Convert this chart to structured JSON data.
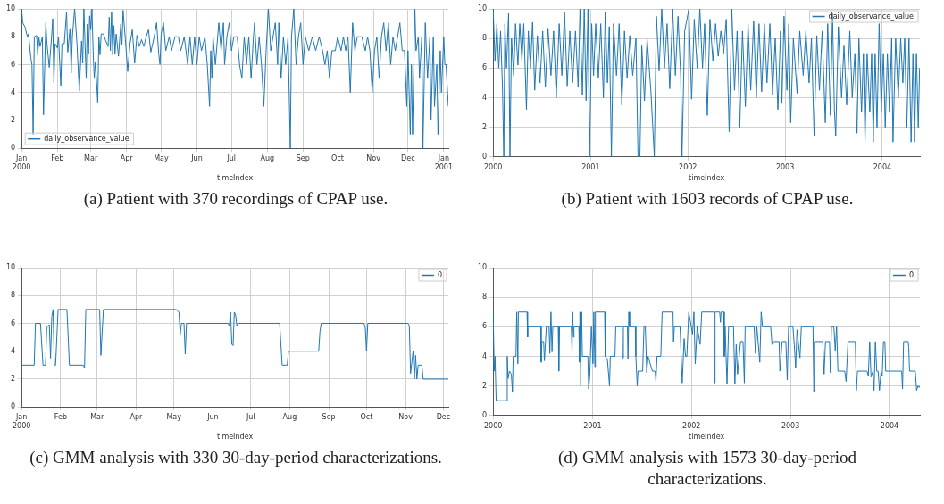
{
  "chart_data": [
    {
      "type": "line",
      "xlabel": "timeIndex",
      "legend": "bottom left",
      "grid": true,
      "annotations": [
        "(a) Patient with 370 recordings of CPAP use."
      ],
      "xlim": [
        "2000-01-01",
        "2001-01-05"
      ],
      "ylim": [
        0,
        10
      ],
      "yticks": [
        0,
        2,
        4,
        6,
        8,
        10
      ],
      "xticks": [
        {
          "value": "2000-01-01",
          "label": "Jan\n2000"
        },
        {
          "value": "2000-02-01",
          "label": "Feb"
        },
        {
          "value": "2000-03-01",
          "label": "Mar"
        },
        {
          "value": "2000-04-01",
          "label": "Apr"
        },
        {
          "value": "2000-05-01",
          "label": "May"
        },
        {
          "value": "2000-06-01",
          "label": "Jun"
        },
        {
          "value": "2000-07-01",
          "label": "Jul"
        },
        {
          "value": "2000-08-01",
          "label": "Aug"
        },
        {
          "value": "2000-09-01",
          "label": "Sep"
        },
        {
          "value": "2000-10-01",
          "label": "Oct"
        },
        {
          "value": "2000-11-01",
          "label": "Nov"
        },
        {
          "value": "2000-12-01",
          "label": "Dec"
        },
        {
          "value": "2001-01-01",
          "label": "Jan\n2001"
        }
      ],
      "series": [
        {
          "name": "daily_observance_value",
          "color": "#1f77b4",
          "x": [
            "2000-01-01",
            "2000-01-02",
            "2000-01-04",
            "2000-01-06",
            "2000-01-07",
            "2000-01-09",
            "2000-01-10",
            "2000-01-11",
            "2000-01-12",
            "2000-01-14",
            "2000-01-15",
            "2000-01-16",
            "2000-01-17",
            "2000-01-19",
            "2000-01-20",
            "2000-01-22",
            "2000-01-23",
            "2000-01-25",
            "2000-01-27",
            "2000-01-28",
            "2000-01-29",
            "2000-01-30",
            "2000-02-01",
            "2000-02-02",
            "2000-02-04",
            "2000-02-05",
            "2000-02-07",
            "2000-02-09",
            "2000-02-10",
            "2000-02-12",
            "2000-02-13",
            "2000-02-14",
            "2000-02-16",
            "2000-02-18",
            "2000-02-20",
            "2000-02-22",
            "2000-02-23",
            "2000-02-24",
            "2000-02-26",
            "2000-02-27",
            "2000-02-28",
            "2000-02-29",
            "2000-03-01",
            "2000-03-02",
            "2000-03-03",
            "2000-03-04",
            "2000-03-05",
            "2000-03-07",
            "2000-03-08",
            "2000-03-09",
            "2000-03-10",
            "2000-03-12",
            "2000-03-14",
            "2000-03-16",
            "2000-03-17",
            "2000-03-18",
            "2000-03-19",
            "2000-03-20",
            "2000-03-21",
            "2000-03-22",
            "2000-03-23",
            "2000-03-25",
            "2000-03-27",
            "2000-03-28",
            "2000-03-29",
            "2000-03-31",
            "2000-04-02",
            "2000-04-04",
            "2000-04-06",
            "2000-04-08",
            "2000-04-10",
            "2000-04-12",
            "2000-04-14",
            "2000-04-16",
            "2000-04-18",
            "2000-04-20",
            "2000-04-22",
            "2000-04-25",
            "2000-04-27",
            "2000-04-29",
            "2000-04-30",
            "2000-05-01",
            "2000-05-03",
            "2000-05-05",
            "2000-05-08",
            "2000-05-10",
            "2000-05-13",
            "2000-05-16",
            "2000-05-18",
            "2000-05-21",
            "2000-05-24",
            "2000-05-26",
            "2000-05-28",
            "2000-05-30",
            "2000-06-01",
            "2000-06-03",
            "2000-06-05",
            "2000-06-08",
            "2000-06-10",
            "2000-06-12",
            "2000-06-13",
            "2000-06-14",
            "2000-06-15",
            "2000-06-17",
            "2000-06-19",
            "2000-06-20",
            "2000-06-22",
            "2000-06-24",
            "2000-06-25",
            "2000-06-27",
            "2000-06-29",
            "2000-07-01",
            "2000-07-03",
            "2000-07-06",
            "2000-07-08",
            "2000-07-10",
            "2000-07-12",
            "2000-07-14",
            "2000-07-16",
            "2000-07-18",
            "2000-07-20",
            "2000-07-21",
            "2000-07-23",
            "2000-07-25",
            "2000-07-27",
            "2000-07-29",
            "2000-07-31",
            "2000-08-02",
            "2000-08-04",
            "2000-08-06",
            "2000-08-08",
            "2000-08-10",
            "2000-08-11",
            "2000-08-13",
            "2000-08-15",
            "2000-08-17",
            "2000-08-19",
            "2000-08-21",
            "2000-08-22",
            "2000-08-24",
            "2000-08-26",
            "2000-08-28",
            "2000-08-30",
            "2000-09-01",
            "2000-09-03",
            "2000-09-06",
            "2000-09-09",
            "2000-09-12",
            "2000-09-15",
            "2000-09-18",
            "2000-09-20",
            "2000-09-22",
            "2000-09-24",
            "2000-09-26",
            "2000-09-29",
            "2000-10-01",
            "2000-10-04",
            "2000-10-06",
            "2000-10-08",
            "2000-10-10",
            "2000-10-12",
            "2000-10-14",
            "2000-10-16",
            "2000-10-18",
            "2000-10-22",
            "2000-10-25",
            "2000-10-27",
            "2000-10-29",
            "2000-10-31",
            "2000-11-02",
            "2000-11-04",
            "2000-11-06",
            "2000-11-08",
            "2000-11-10",
            "2000-11-12",
            "2000-11-14",
            "2000-11-16",
            "2000-11-18",
            "2000-11-20",
            "2000-11-22",
            "2000-11-24",
            "2000-11-26",
            "2000-11-28",
            "2000-11-30",
            "2000-12-01",
            "2000-12-03",
            "2000-12-04",
            "2000-12-05",
            "2000-12-07",
            "2000-12-08",
            "2000-12-10",
            "2000-12-11",
            "2000-12-13",
            "2000-12-14",
            "2000-12-16",
            "2000-12-18",
            "2000-12-20",
            "2000-12-21",
            "2000-12-23",
            "2000-12-24",
            "2000-12-26",
            "2000-12-27",
            "2000-12-29",
            "2000-12-30",
            "2001-01-01",
            "2001-01-02",
            "2001-01-03",
            "2001-01-05"
          ],
          "values": [
            10,
            9,
            8.7,
            8,
            8.2,
            6.5,
            6,
            1,
            8,
            8.1,
            6.7,
            8,
            7.3,
            8,
            2.4,
            9,
            7.5,
            5.8,
            8,
            9.3,
            4.7,
            7.5,
            7.2,
            8,
            4.5,
            7.5,
            7.5,
            9.8,
            6.9,
            8.6,
            5.4,
            8,
            10,
            7.5,
            4.1,
            7.7,
            6.1,
            10,
            5,
            8.9,
            6.8,
            9.5,
            8.5,
            10,
            7,
            5,
            6.2,
            3.3,
            8,
            6.7,
            8.2,
            8.2,
            7.7,
            7.3,
            9.4,
            7,
            9.8,
            6.7,
            8.8,
            6.8,
            8.2,
            6.6,
            8.9,
            7.4,
            9.9,
            7.8,
            5.5,
            7.5,
            8.5,
            6.1,
            8.1,
            7.3,
            7.8,
            7.3,
            8,
            8.5,
            6.9,
            8,
            9,
            6.7,
            6,
            8.2,
            9,
            7,
            8,
            7,
            8,
            8,
            7,
            8,
            6,
            8,
            6,
            8,
            6,
            8,
            7,
            8,
            6,
            3,
            7,
            5,
            8,
            6,
            8,
            9,
            7,
            9,
            6,
            8,
            9,
            7,
            8,
            8,
            6,
            5,
            8,
            6,
            8,
            5,
            8,
            9,
            6,
            8,
            6,
            3,
            7,
            10,
            7,
            8,
            9,
            6,
            9,
            5,
            8,
            6,
            8,
            0,
            8,
            10,
            6,
            8,
            9,
            6,
            8,
            7,
            8,
            7,
            8,
            7,
            6,
            7,
            5,
            7,
            7,
            8,
            7,
            8,
            7,
            8,
            4,
            9,
            7,
            8,
            8,
            7,
            8,
            7,
            4,
            7,
            8,
            5,
            8,
            9,
            7,
            9,
            6,
            8,
            7,
            8,
            9,
            7,
            7,
            3,
            7,
            1,
            6,
            1,
            10,
            7,
            8,
            5,
            8,
            0,
            9,
            5,
            8,
            2,
            8,
            3,
            6,
            1,
            7,
            4,
            8,
            6,
            6,
            3
          ]
        }
      ]
    },
    {
      "type": "line",
      "xlabel": "timeIndex",
      "legend": "top right",
      "grid": true,
      "annotations": [
        "(b) Patient with 1603 records of CPAP use."
      ],
      "xlim": [
        "2000-01-01",
        "2004-05-21"
      ],
      "ylim": [
        0,
        10
      ],
      "yticks": [
        0,
        2,
        4,
        6,
        8,
        10
      ],
      "xticks": [
        {
          "value": "2000-01-01",
          "label": "2000"
        },
        {
          "value": "2001-01-01",
          "label": "2001"
        },
        {
          "value": "2002-01-01",
          "label": "2002"
        },
        {
          "value": "2003-01-01",
          "label": "2003"
        },
        {
          "value": "2004-01-01",
          "label": "2004"
        }
      ],
      "series": [
        {
          "name": "daily_observance_value",
          "color": "#1f77b4",
          "x": [
            "2000-01-01",
            "2000-01-08",
            "2000-01-15",
            "2000-01-22",
            "2000-01-29",
            "2000-02-05",
            "2000-02-10",
            "2000-02-14",
            "2000-02-20",
            "2000-02-28",
            "2000-03-04",
            "2000-03-10",
            "2000-03-18",
            "2000-03-25",
            "2000-04-03",
            "2000-04-10",
            "2000-04-18",
            "2000-04-25",
            "2000-05-05",
            "2000-05-12",
            "2000-05-20",
            "2000-05-28",
            "2000-06-05",
            "2000-06-15",
            "2000-06-25",
            "2000-07-05",
            "2000-07-15",
            "2000-07-25",
            "2000-08-05",
            "2000-08-15",
            "2000-08-25",
            "2000-09-05",
            "2000-09-15",
            "2000-09-25",
            "2000-10-05",
            "2000-10-15",
            "2000-10-25",
            "2000-11-05",
            "2000-11-15",
            "2000-11-22",
            "2000-12-01",
            "2000-12-08",
            "2000-12-15",
            "2000-12-22",
            "2000-12-28",
            "2001-01-05",
            "2001-01-12",
            "2001-01-20",
            "2001-01-30",
            "2001-02-08",
            "2001-02-18",
            "2001-02-25",
            "2001-03-05",
            "2001-03-12",
            "2001-03-20",
            "2001-03-28",
            "2001-04-08",
            "2001-04-18",
            "2001-04-28",
            "2001-05-08",
            "2001-05-18",
            "2001-05-28",
            "2001-06-08",
            "2001-06-20",
            "2001-06-28",
            "2001-07-05",
            "2001-07-12",
            "2001-07-22",
            "2001-08-01",
            "2001-08-15",
            "2001-08-28",
            "2001-09-05",
            "2001-09-15",
            "2001-09-25",
            "2001-10-05",
            "2001-10-15",
            "2001-10-25",
            "2001-11-05",
            "2001-11-15",
            "2001-11-25",
            "2001-12-05",
            "2001-12-10",
            "2001-12-20",
            "2002-01-05",
            "2002-01-15",
            "2002-01-25",
            "2002-02-05",
            "2002-02-15",
            "2002-02-25",
            "2002-03-05",
            "2002-03-15",
            "2002-03-25",
            "2002-04-05",
            "2002-04-15",
            "2002-04-25",
            "2002-05-05",
            "2002-05-15",
            "2002-05-25",
            "2002-06-05",
            "2002-06-15",
            "2002-06-25",
            "2002-07-05",
            "2002-07-15",
            "2002-07-25",
            "2002-08-05",
            "2002-08-15",
            "2002-08-25",
            "2002-09-05",
            "2002-09-15",
            "2002-09-25",
            "2002-10-05",
            "2002-10-15",
            "2002-10-25",
            "2002-11-05",
            "2002-11-15",
            "2002-11-25",
            "2002-12-05",
            "2002-12-15",
            "2002-12-20",
            "2002-12-28",
            "2003-01-08",
            "2003-01-15",
            "2003-01-22",
            "2003-02-01",
            "2003-02-15",
            "2003-02-25",
            "2003-03-10",
            "2003-03-20",
            "2003-04-01",
            "2003-04-10",
            "2003-04-20",
            "2003-04-30",
            "2003-05-10",
            "2003-05-20",
            "2003-06-01",
            "2003-06-10",
            "2003-06-20",
            "2003-06-28",
            "2003-07-05",
            "2003-07-10",
            "2003-07-20",
            "2003-08-01",
            "2003-08-10",
            "2003-08-20",
            "2003-09-01",
            "2003-09-10",
            "2003-09-20",
            "2003-09-28",
            "2003-10-05",
            "2003-10-15",
            "2003-10-22",
            "2003-10-28",
            "2003-11-05",
            "2003-11-15",
            "2003-11-22",
            "2003-11-28",
            "2003-12-05",
            "2003-12-12",
            "2003-12-20",
            "2003-12-28",
            "2004-01-05",
            "2004-01-12",
            "2004-01-20",
            "2004-01-28",
            "2004-02-05",
            "2004-02-10",
            "2004-02-20",
            "2004-03-01",
            "2004-03-10",
            "2004-03-18",
            "2004-03-25",
            "2004-04-02",
            "2004-04-10",
            "2004-04-18",
            "2004-04-25",
            "2004-05-01",
            "2004-05-08",
            "2004-05-15",
            "2004-05-20"
          ],
          "values": [
            10,
            6.5,
            9,
            6,
            8.5,
            4.7,
            0,
            9,
            6,
            9.7,
            0,
            8,
            5.5,
            9,
            6.2,
            9,
            6.5,
            9,
            3.2,
            8.5,
            6,
            9.1,
            4.5,
            8.2,
            5,
            8.5,
            4.7,
            8.7,
            5.5,
            8.5,
            4,
            9,
            5.5,
            9.8,
            4.8,
            8.5,
            5,
            8.5,
            4.7,
            10,
            4.2,
            10,
            3.8,
            10,
            0,
            9,
            5.5,
            9,
            5.3,
            9,
            4,
            9.8,
            5,
            8.8,
            0,
            9,
            5.5,
            9,
            3.5,
            8.5,
            5.3,
            8.2,
            5.5,
            8,
            0,
            0,
            7.5,
            3.8,
            8,
            4.5,
            0,
            9.5,
            5.8,
            10,
            6,
            9,
            4.6,
            10,
            5.5,
            9.5,
            5.5,
            0,
            8.5,
            10,
            3.9,
            9.3,
            6,
            10,
            6,
            9,
            2.8,
            9.3,
            6.5,
            9,
            6.8,
            8.5,
            7,
            9.3,
            1.7,
            10,
            4.5,
            8.5,
            2,
            8.5,
            3.4,
            9,
            4.5,
            9.2,
            4,
            9,
            4.4,
            9,
            5,
            9,
            4.2,
            8,
            3.2,
            8.5,
            3.6,
            9.5,
            4.5,
            9,
            2.3,
            8,
            4.3,
            8.5,
            5.5,
            8.5,
            5,
            8,
            1.4,
            8.2,
            4.5,
            8.5,
            2.3,
            9,
            2.8,
            9.7,
            3.2,
            1.4,
            8.8,
            4,
            7.5,
            3.5,
            8.5,
            4,
            7,
            1.6,
            8,
            3,
            7,
            1,
            7,
            3,
            7,
            1,
            7,
            2,
            9,
            3,
            7,
            2,
            7,
            3,
            8,
            1,
            8,
            4,
            8,
            5,
            8,
            2,
            8,
            1,
            7,
            1,
            7,
            2,
            6
          ]
        }
      ]
    },
    {
      "type": "line",
      "xlabel": "timeIndex",
      "legend": "top right",
      "grid": true,
      "annotations": [
        "(c) GMM analysis with 330 30-day-period characterizations."
      ],
      "xlim": [
        "2000-01-01",
        "2000-12-05"
      ],
      "ylim": [
        0,
        10
      ],
      "yticks": [
        0,
        2,
        4,
        6,
        8,
        10
      ],
      "xticks": [
        {
          "value": "2000-01-01",
          "label": "Jan\n2000"
        },
        {
          "value": "2000-02-01",
          "label": "Feb"
        },
        {
          "value": "2000-03-01",
          "label": "Mar"
        },
        {
          "value": "2000-04-01",
          "label": "Apr"
        },
        {
          "value": "2000-05-01",
          "label": "May"
        },
        {
          "value": "2000-06-01",
          "label": "Jun"
        },
        {
          "value": "2000-07-01",
          "label": "Jul"
        },
        {
          "value": "2000-08-01",
          "label": "Aug"
        },
        {
          "value": "2000-09-01",
          "label": "Sep"
        },
        {
          "value": "2000-10-01",
          "label": "Oct"
        },
        {
          "value": "2000-11-01",
          "label": "Nov"
        },
        {
          "value": "2000-12-01",
          "label": "Dec"
        }
      ],
      "series": [
        {
          "name": "0",
          "color": "#1f77b4",
          "x": [
            "2000-01-01",
            "2000-01-11",
            "2000-01-12",
            "2000-01-16",
            "2000-01-18",
            "2000-01-20",
            "2000-01-21",
            "2000-01-23",
            "2000-01-24",
            "2000-01-25",
            "2000-01-26",
            "2000-01-27",
            "2000-01-28",
            "2000-01-30",
            "2000-02-06",
            "2000-02-08",
            "2000-02-19",
            "2000-02-20",
            "2000-02-21",
            "2000-03-03",
            "2000-03-04",
            "2000-03-06",
            "2000-05-03",
            "2000-05-05",
            "2000-05-06",
            "2000-05-07",
            "2000-05-09",
            "2000-05-10",
            "2000-05-11",
            "2000-06-13",
            "2000-06-14",
            "2000-06-15",
            "2000-06-16",
            "2000-06-17",
            "2000-06-18",
            "2000-06-19",
            "2000-06-20",
            "2000-06-21",
            "2000-07-24",
            "2000-07-26",
            "2000-07-30",
            "2000-07-31",
            "2000-08-24",
            "2000-08-25",
            "2000-08-26",
            "2000-09-29",
            "2000-09-30",
            "2000-10-01",
            "2000-10-02",
            "2000-11-03",
            "2000-11-04",
            "2000-11-05",
            "2000-11-07",
            "2000-11-08",
            "2000-11-09",
            "2000-11-10",
            "2000-11-11",
            "2000-11-14",
            "2000-11-15",
            "2000-12-05"
          ],
          "values": [
            3,
            3,
            6,
            6,
            3,
            3,
            5.7,
            5.9,
            3.5,
            6.5,
            7,
            3,
            3,
            7,
            7,
            3,
            3,
            2.8,
            7,
            7,
            3.7,
            7,
            7,
            6.8,
            5.2,
            6,
            6,
            3.8,
            6,
            6,
            5.8,
            6.8,
            4.5,
            4.4,
            6.8,
            6.6,
            5.8,
            6,
            6,
            3,
            3,
            4,
            4,
            5.4,
            6,
            6,
            5.7,
            4,
            6,
            6,
            5.8,
            2.4,
            4,
            2,
            3.7,
            2,
            3,
            3,
            2,
            2
          ]
        }
      ]
    },
    {
      "type": "line",
      "xlabel": "timeIndex",
      "legend": "top right",
      "grid": true,
      "annotations": [
        "(d) GMM analysis with 1573 30-day-period characterizations."
      ],
      "xlim": [
        "2000-01-01",
        "2004-04-22"
      ],
      "ylim": [
        0,
        10
      ],
      "yticks": [
        0,
        2,
        4,
        6,
        8,
        10
      ],
      "xticks": [
        {
          "value": "2000-01-01",
          "label": "2000"
        },
        {
          "value": "2001-01-01",
          "label": "2001"
        },
        {
          "value": "2002-01-01",
          "label": "2002"
        },
        {
          "value": "2003-01-01",
          "label": "2003"
        },
        {
          "value": "2004-01-01",
          "label": "2004"
        }
      ],
      "series": [
        {
          "name": "0",
          "color": "#1f77b4",
          "x": [
            "2000-01-01",
            "2000-01-05",
            "2000-01-08",
            "2000-01-12",
            "2000-02-20",
            "2000-02-22",
            "2000-02-25",
            "2000-03-01",
            "2000-03-08",
            "2000-03-12",
            "2000-03-15",
            "2000-03-25",
            "2000-03-28",
            "2000-04-01",
            "2000-04-03",
            "2000-05-05",
            "2000-05-07",
            "2000-05-08",
            "2000-06-25",
            "2000-06-26",
            "2000-06-28",
            "2000-07-05",
            "2000-07-08",
            "2000-07-12",
            "2000-07-15",
            "2000-07-25",
            "2000-07-28",
            "2000-08-01",
            "2000-08-05",
            "2000-08-08",
            "2000-08-28",
            "2000-08-30",
            "2000-09-02",
            "2000-10-15",
            "2000-10-18",
            "2000-10-20",
            "2000-10-23",
            "2000-10-25",
            "2000-11-12",
            "2000-11-14",
            "2000-11-16",
            "2000-11-19",
            "2000-11-22",
            "2000-11-25",
            "2000-12-15",
            "2000-12-18",
            "2000-12-22",
            "2000-12-28",
            "2001-01-03",
            "2001-01-06",
            "2001-01-10",
            "2001-01-12",
            "2001-02-15",
            "2001-02-17",
            "2001-02-25",
            "2001-03-05",
            "2001-03-08",
            "2001-03-25",
            "2001-03-28",
            "2001-04-20",
            "2001-04-22",
            "2001-04-25",
            "2001-05-10",
            "2001-05-12",
            "2001-05-15",
            "2001-05-18",
            "2001-06-08",
            "2001-06-10",
            "2001-06-15",
            "2001-06-18",
            "2001-07-05",
            "2001-07-10",
            "2001-07-15",
            "2001-07-20",
            "2001-07-25",
            "2001-08-10",
            "2001-08-20",
            "2001-08-23",
            "2001-08-27",
            "2001-09-10",
            "2001-09-15",
            "2001-10-25",
            "2001-10-27",
            "2001-10-30",
            "2001-11-20",
            "2001-11-25",
            "2001-11-28",
            "2001-12-05",
            "2001-12-10",
            "2001-12-15",
            "2001-12-22",
            "2002-01-05",
            "2002-01-10",
            "2002-01-15",
            "2002-01-22",
            "2002-02-02",
            "2002-02-08",
            "2002-03-25",
            "2002-03-27",
            "2002-03-29",
            "2002-04-15",
            "2002-04-18",
            "2002-04-20",
            "2002-04-30",
            "2002-05-02",
            "2002-05-05",
            "2002-05-12",
            "2002-05-18",
            "2002-06-05",
            "2002-06-10",
            "2002-06-15",
            "2002-06-20",
            "2002-07-01",
            "2002-07-10",
            "2002-07-15",
            "2002-07-18",
            "2002-08-20",
            "2002-08-25",
            "2002-08-30",
            "2002-09-10",
            "2002-09-15",
            "2002-09-20",
            "2002-10-20",
            "2002-10-25",
            "2002-11-01",
            "2002-11-20",
            "2002-11-23",
            "2002-12-01",
            "2002-12-15",
            "2002-12-20",
            "2002-12-25",
            "2003-01-10",
            "2003-01-15",
            "2003-01-20",
            "2003-01-25",
            "2003-02-05",
            "2003-02-10",
            "2003-03-25",
            "2003-03-28",
            "2003-03-30",
            "2003-04-30",
            "2003-05-05",
            "2003-05-10",
            "2003-05-25",
            "2003-05-28",
            "2003-06-01",
            "2003-06-10",
            "2003-06-15",
            "2003-06-20",
            "2003-06-25",
            "2003-07-20",
            "2003-07-25",
            "2003-08-01",
            "2003-08-28",
            "2003-09-01",
            "2003-09-05",
            "2003-10-10",
            "2003-10-15",
            "2003-10-20",
            "2003-10-25",
            "2003-11-01",
            "2003-11-05",
            "2003-11-10",
            "2003-11-15",
            "2003-11-20",
            "2003-11-25",
            "2003-12-01",
            "2003-12-05",
            "2003-12-10",
            "2003-12-15",
            "2003-12-18",
            "2004-02-15",
            "2004-02-18",
            "2004-02-22",
            "2004-03-10",
            "2004-03-12",
            "2004-03-15",
            "2004-04-05",
            "2004-04-10",
            "2004-04-15",
            "2004-04-20",
            "2004-04-22"
          ],
          "values": [
            7,
            3,
            4,
            1,
            1,
            4,
            2.5,
            3,
            2.8,
            1.6,
            4,
            4,
            7,
            3.5,
            7,
            7,
            5.3,
            6,
            6,
            3.6,
            5,
            5,
            3.7,
            5,
            6,
            6,
            4.2,
            7,
            4.3,
            6,
            6,
            3,
            6,
            6,
            4.3,
            7,
            5.3,
            6,
            6,
            3.6,
            7,
            2,
            7,
            4,
            4,
            1.8,
            2.6,
            6,
            3.5,
            7,
            3.3,
            7,
            7,
            4,
            3.8,
            2,
            4,
            4,
            6,
            6,
            3.9,
            6,
            6,
            3.8,
            7,
            6,
            6,
            4,
            2,
            3,
            3,
            6,
            6,
            2.9,
            4,
            3,
            3,
            2.3,
            4,
            4,
            7,
            7,
            5,
            6,
            6,
            3.5,
            2.2,
            5.2,
            4,
            4,
            7,
            5.5,
            7,
            3.5,
            6,
            4.8,
            7,
            7,
            2.2,
            7,
            7,
            6.3,
            7,
            7,
            4,
            6,
            2.1,
            6,
            6,
            2.1,
            4.8,
            2.8,
            5,
            5,
            2.2,
            6,
            6,
            4.2,
            6,
            3.6,
            7,
            6,
            6,
            4.8,
            5,
            5,
            3,
            5,
            5,
            2.4,
            6,
            6,
            4.8,
            3.2,
            5.8,
            3.9,
            6,
            6,
            1.6,
            5,
            5,
            2.8,
            5,
            5,
            2.9,
            6,
            6,
            4.4,
            6,
            3,
            3,
            2.3,
            5,
            5,
            1.7,
            3,
            3,
            2.7,
            5,
            2.6,
            3,
            1.7,
            5,
            3,
            3,
            1.7,
            3,
            2.7,
            5,
            5,
            3,
            3,
            1.8,
            5,
            5,
            4.6,
            3,
            3,
            1.7,
            2,
            1.9,
            2
          ]
        }
      ]
    }
  ]
}
